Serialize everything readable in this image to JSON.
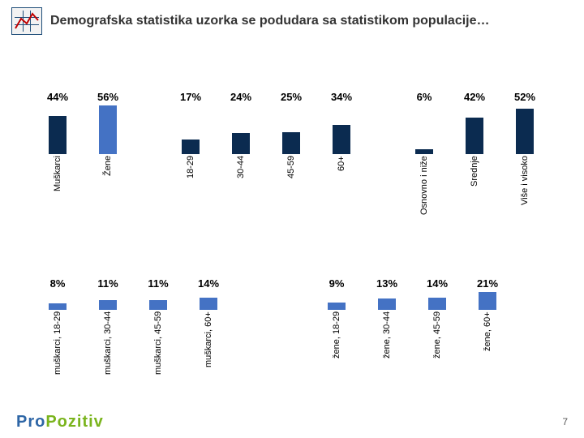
{
  "title": "Demografska statistika uzorka se podudara sa statistikom populacije…",
  "page_number": "7",
  "logo": {
    "text1": "Pro",
    "text2": "Pozitiv"
  },
  "colors": {
    "navy": "#0b2b50",
    "blue": "#4472c4",
    "text": "#333333"
  },
  "chart": {
    "type": "bar",
    "value_suffix": "%",
    "font": {
      "label_size": 11,
      "value_size": 13
    },
    "row1": {
      "max": 56,
      "bar_area_h": 60,
      "groups": [
        {
          "bars": [
            {
              "label": "Muškarci",
              "value": 44,
              "color": "#0b2b50"
            },
            {
              "label": "Žene",
              "value": 56,
              "color": "#4472c4"
            }
          ]
        },
        {
          "bars": [
            {
              "label": "18-29",
              "value": 17,
              "color": "#0b2b50"
            },
            {
              "label": "30-44",
              "value": 24,
              "color": "#0b2b50"
            },
            {
              "label": "45-59",
              "value": 25,
              "color": "#0b2b50"
            },
            {
              "label": "60+",
              "value": 34,
              "color": "#0b2b50"
            }
          ]
        },
        {
          "bars": [
            {
              "label": "Osnovno i niže",
              "value": 6,
              "color": "#0b2b50"
            },
            {
              "label": "Srednje",
              "value": 42,
              "color": "#0b2b50"
            },
            {
              "label": "Više i visoko",
              "value": 52,
              "color": "#0b2b50"
            }
          ]
        }
      ]
    },
    "row2": {
      "max": 21,
      "bar_area_h": 22,
      "groups": [
        {
          "bars": [
            {
              "label": "muškarci, 18-29",
              "value": 8,
              "color": "#4472c4"
            },
            {
              "label": "muškarci, 30-44",
              "value": 11,
              "color": "#4472c4"
            },
            {
              "label": "muškarci, 45-59",
              "value": 11,
              "color": "#4472c4"
            },
            {
              "label": "muškarci, 60+",
              "value": 14,
              "color": "#4472c4"
            }
          ]
        },
        {
          "bars": [
            {
              "label": "žene, 18-29",
              "value": 9,
              "color": "#4472c4"
            },
            {
              "label": "žene, 30-44",
              "value": 13,
              "color": "#4472c4"
            },
            {
              "label": "žene, 45-59",
              "value": 14,
              "color": "#4472c4"
            },
            {
              "label": "žene, 60+",
              "value": 21,
              "color": "#4472c4"
            }
          ]
        }
      ]
    }
  }
}
